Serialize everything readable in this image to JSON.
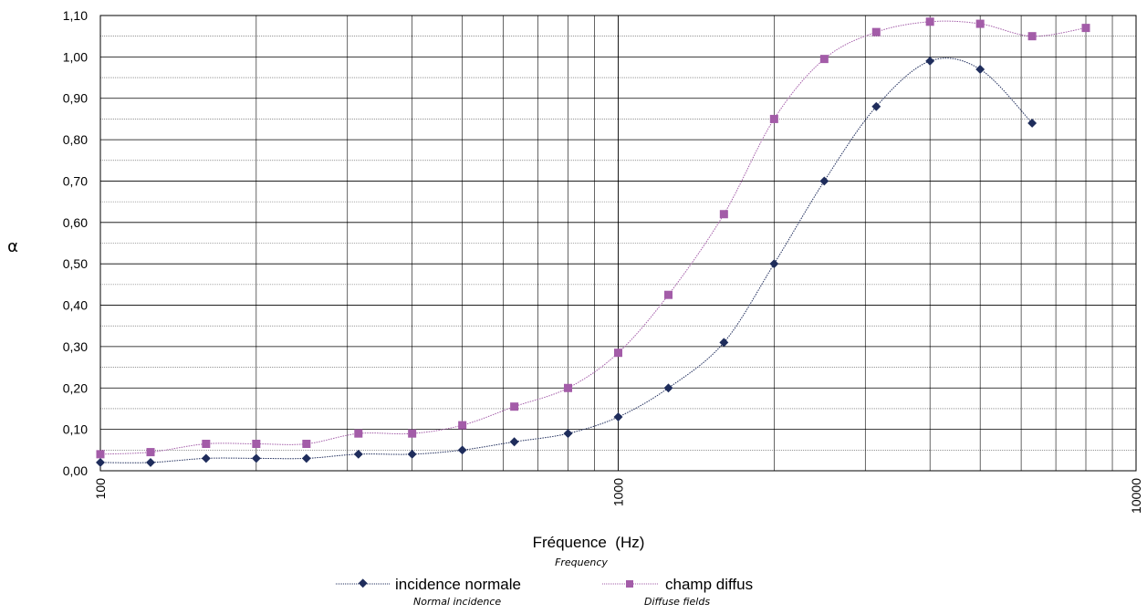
{
  "chart_data": {
    "type": "line",
    "xscale": "log",
    "xlim": [
      100,
      10000
    ],
    "ylim": [
      0,
      1.1
    ],
    "xticks": [
      "100",
      "1000",
      "10000"
    ],
    "yticks": [
      "0,00",
      "0,10",
      "0,20",
      "0,30",
      "0,40",
      "0,50",
      "0,60",
      "0,70",
      "0,80",
      "0,90",
      "1,00",
      "1,10"
    ],
    "ylabel": "α",
    "xlabel": "Fréquence  (Hz)",
    "xlabel_sub": "Frequency",
    "grid": true,
    "legend_position": "bottom",
    "series": [
      {
        "name": "incidence normale",
        "name_sub": "Normal incidence",
        "color": "#1f2d5c",
        "marker": "diamond",
        "x": [
          100,
          125,
          160,
          200,
          250,
          315,
          400,
          500,
          630,
          800,
          1000,
          1250,
          1600,
          2000,
          2500,
          3150,
          4000,
          5000,
          6300
        ],
        "y": [
          0.02,
          0.02,
          0.03,
          0.03,
          0.03,
          0.04,
          0.04,
          0.05,
          0.07,
          0.09,
          0.13,
          0.2,
          0.31,
          0.5,
          0.7,
          0.88,
          0.99,
          0.97,
          0.84
        ]
      },
      {
        "name": "champ diffus",
        "name_sub": "Diffuse fields",
        "color": "#a35ca8",
        "marker": "square",
        "x": [
          100,
          125,
          160,
          200,
          250,
          315,
          400,
          500,
          630,
          800,
          1000,
          1250,
          1600,
          2000,
          2500,
          3150,
          4000,
          5000,
          6300,
          8000
        ],
        "y": [
          0.04,
          0.045,
          0.065,
          0.065,
          0.065,
          0.09,
          0.09,
          0.11,
          0.155,
          0.2,
          0.285,
          0.425,
          0.62,
          0.85,
          0.995,
          1.06,
          1.085,
          1.08,
          1.05,
          1.07
        ]
      }
    ]
  }
}
